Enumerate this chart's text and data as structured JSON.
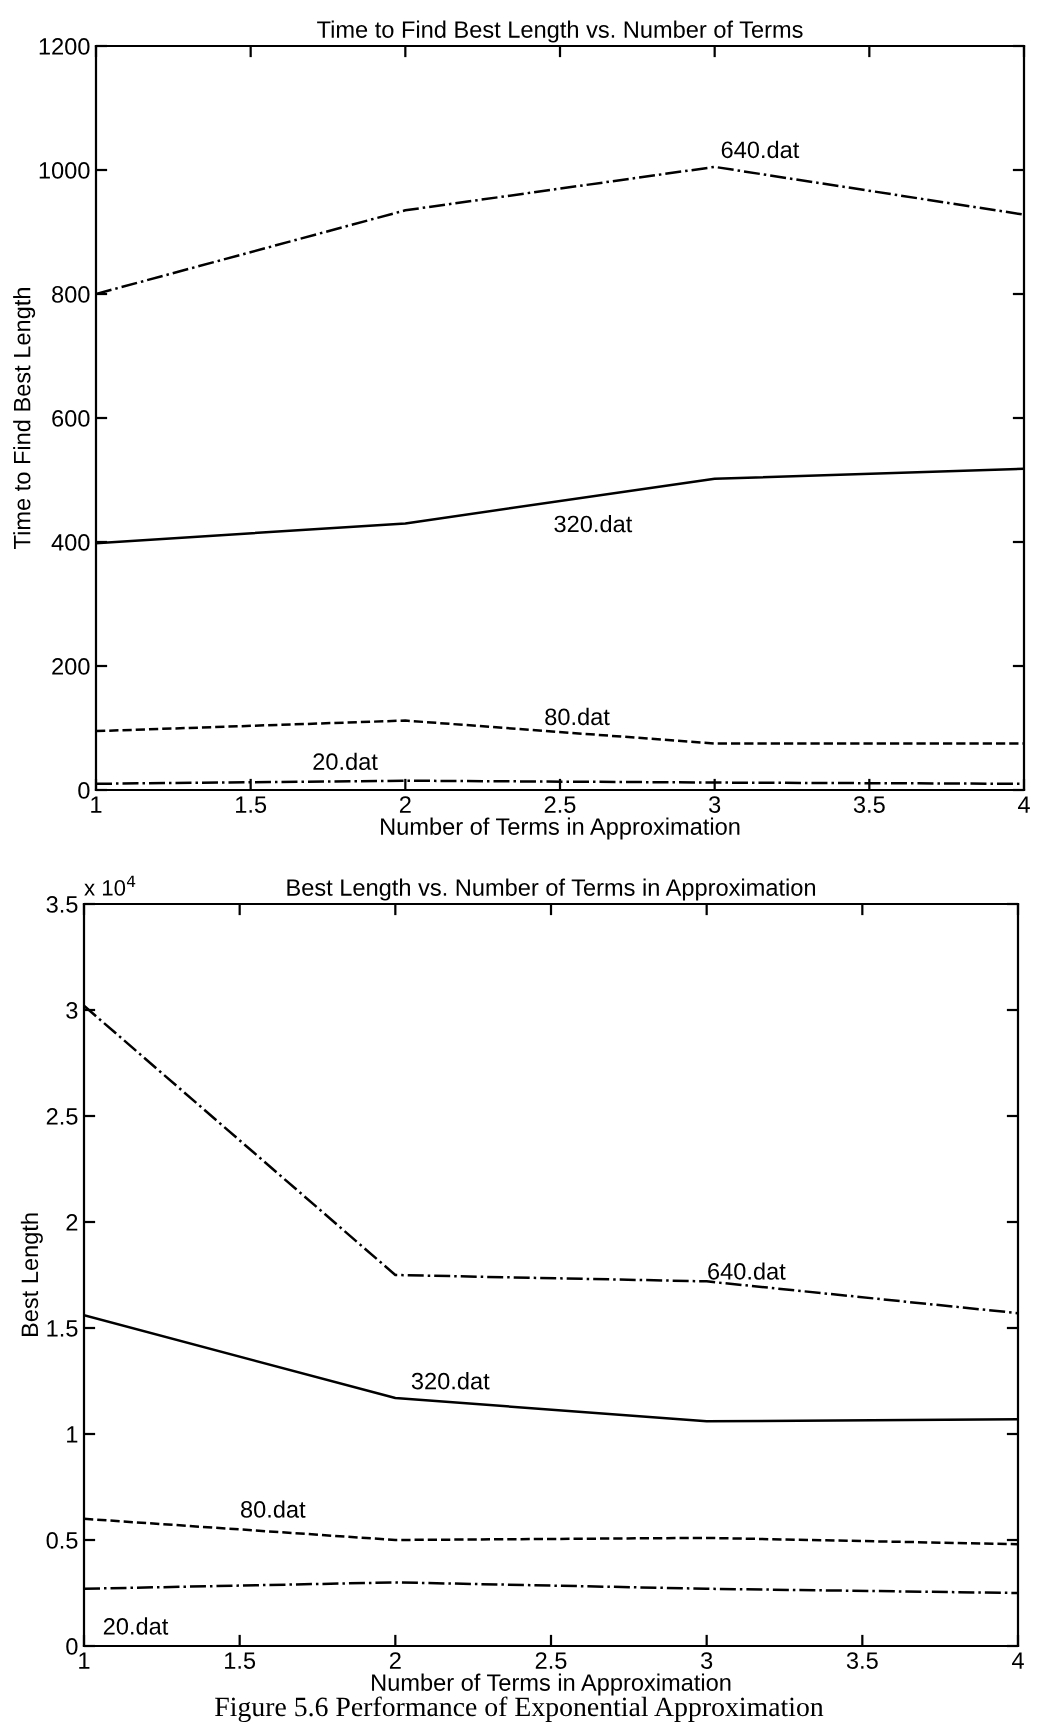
{
  "chart_data": [
    {
      "type": "line",
      "title": "Time to Find Best Length vs. Number of Terms",
      "xlabel": "Number of Terms in Approximation",
      "ylabel": "Time to Find Best Length",
      "x": [
        1,
        2,
        3,
        4
      ],
      "xlim": [
        1,
        4
      ],
      "xticks": [
        1,
        1.5,
        2,
        2.5,
        3,
        3.5,
        4
      ],
      "ylim": [
        0,
        1200
      ],
      "yticks": [
        0,
        200,
        400,
        600,
        800,
        1000,
        1200
      ],
      "grid": false,
      "legend": false,
      "series": [
        {
          "name": "640.dat",
          "color": "#000000",
          "line_style": "dashdot",
          "values": [
            800,
            935,
            1005,
            928
          ]
        },
        {
          "name": "320.dat",
          "color": "#000000",
          "line_style": "solid",
          "values": [
            398,
            430,
            502,
            518
          ]
        },
        {
          "name": "80.dat",
          "color": "#000000",
          "line_style": "dashed",
          "values": [
            95,
            112,
            75,
            75
          ]
        },
        {
          "name": "20.dat",
          "color": "#000000",
          "line_style": "dashdot",
          "values": [
            10,
            15,
            12,
            10
          ]
        }
      ]
    },
    {
      "type": "line",
      "title": "Best Length vs. Number of Terms in Approximation",
      "xlabel": "Number of Terms in Approximation",
      "ylabel": "Best Length",
      "x": [
        1,
        2,
        3,
        4
      ],
      "xlim": [
        1,
        4
      ],
      "xticks": [
        1,
        1.5,
        2,
        2.5,
        3,
        3.5,
        4
      ],
      "ylim": [
        0,
        3.5
      ],
      "yticks": [
        0,
        0.5,
        1,
        1.5,
        2,
        2.5,
        3,
        3.5
      ],
      "grid": false,
      "legend": false,
      "series": [
        {
          "name": "640.dat",
          "color": "#000000",
          "line_style": "dashdot",
          "values": [
            3.02,
            1.75,
            1.72,
            1.57
          ]
        },
        {
          "name": "320.dat",
          "color": "#000000",
          "line_style": "solid",
          "values": [
            1.56,
            1.17,
            1.06,
            1.07
          ]
        },
        {
          "name": "80.dat",
          "color": "#000000",
          "line_style": "dashed",
          "values": [
            0.6,
            0.5,
            0.51,
            0.48
          ]
        },
        {
          "name": "20.dat",
          "color": "#000000",
          "line_style": "dashdot",
          "values": [
            0.27,
            0.3,
            0.27,
            0.25
          ]
        }
      ],
      "annotations": [
        "x 10$^{4}$",
        "Figure 5.6 Performance of Exponential Approximation"
      ]
    }
  ]
}
